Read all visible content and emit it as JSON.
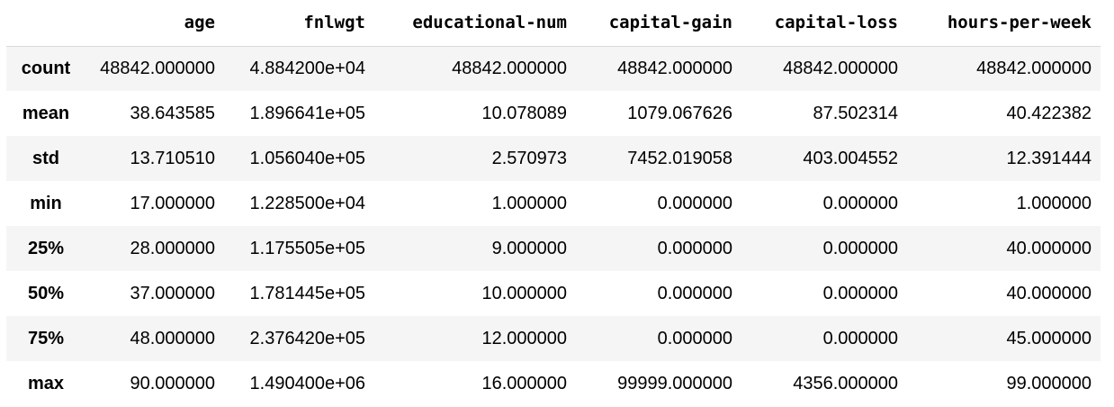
{
  "table": {
    "index_header": "",
    "columns": [
      "age",
      "fnlwgt",
      "educational-num",
      "capital-gain",
      "capital-loss",
      "hours-per-week"
    ],
    "rows": [
      {
        "label": "count",
        "values": [
          "48842.000000",
          "4.884200e+04",
          "48842.000000",
          "48842.000000",
          "48842.000000",
          "48842.000000"
        ]
      },
      {
        "label": "mean",
        "values": [
          "38.643585",
          "1.896641e+05",
          "10.078089",
          "1079.067626",
          "87.502314",
          "40.422382"
        ]
      },
      {
        "label": "std",
        "values": [
          "13.710510",
          "1.056040e+05",
          "2.570973",
          "7452.019058",
          "403.004552",
          "12.391444"
        ]
      },
      {
        "label": "min",
        "values": [
          "17.000000",
          "1.228500e+04",
          "1.000000",
          "0.000000",
          "0.000000",
          "1.000000"
        ]
      },
      {
        "label": "25%",
        "values": [
          "28.000000",
          "1.175505e+05",
          "9.000000",
          "0.000000",
          "0.000000",
          "40.000000"
        ]
      },
      {
        "label": "50%",
        "values": [
          "37.000000",
          "1.781445e+05",
          "10.000000",
          "0.000000",
          "0.000000",
          "40.000000"
        ]
      },
      {
        "label": "75%",
        "values": [
          "48.000000",
          "2.376420e+05",
          "12.000000",
          "0.000000",
          "0.000000",
          "45.000000"
        ]
      },
      {
        "label": "max",
        "values": [
          "90.000000",
          "1.490400e+06",
          "16.000000",
          "99999.000000",
          "4356.000000",
          "99.000000"
        ]
      }
    ]
  },
  "colors": {
    "stripe": "#f5f5f5",
    "background": "#ffffff",
    "header_rule": "#d9d9d9",
    "text": "#000000"
  }
}
